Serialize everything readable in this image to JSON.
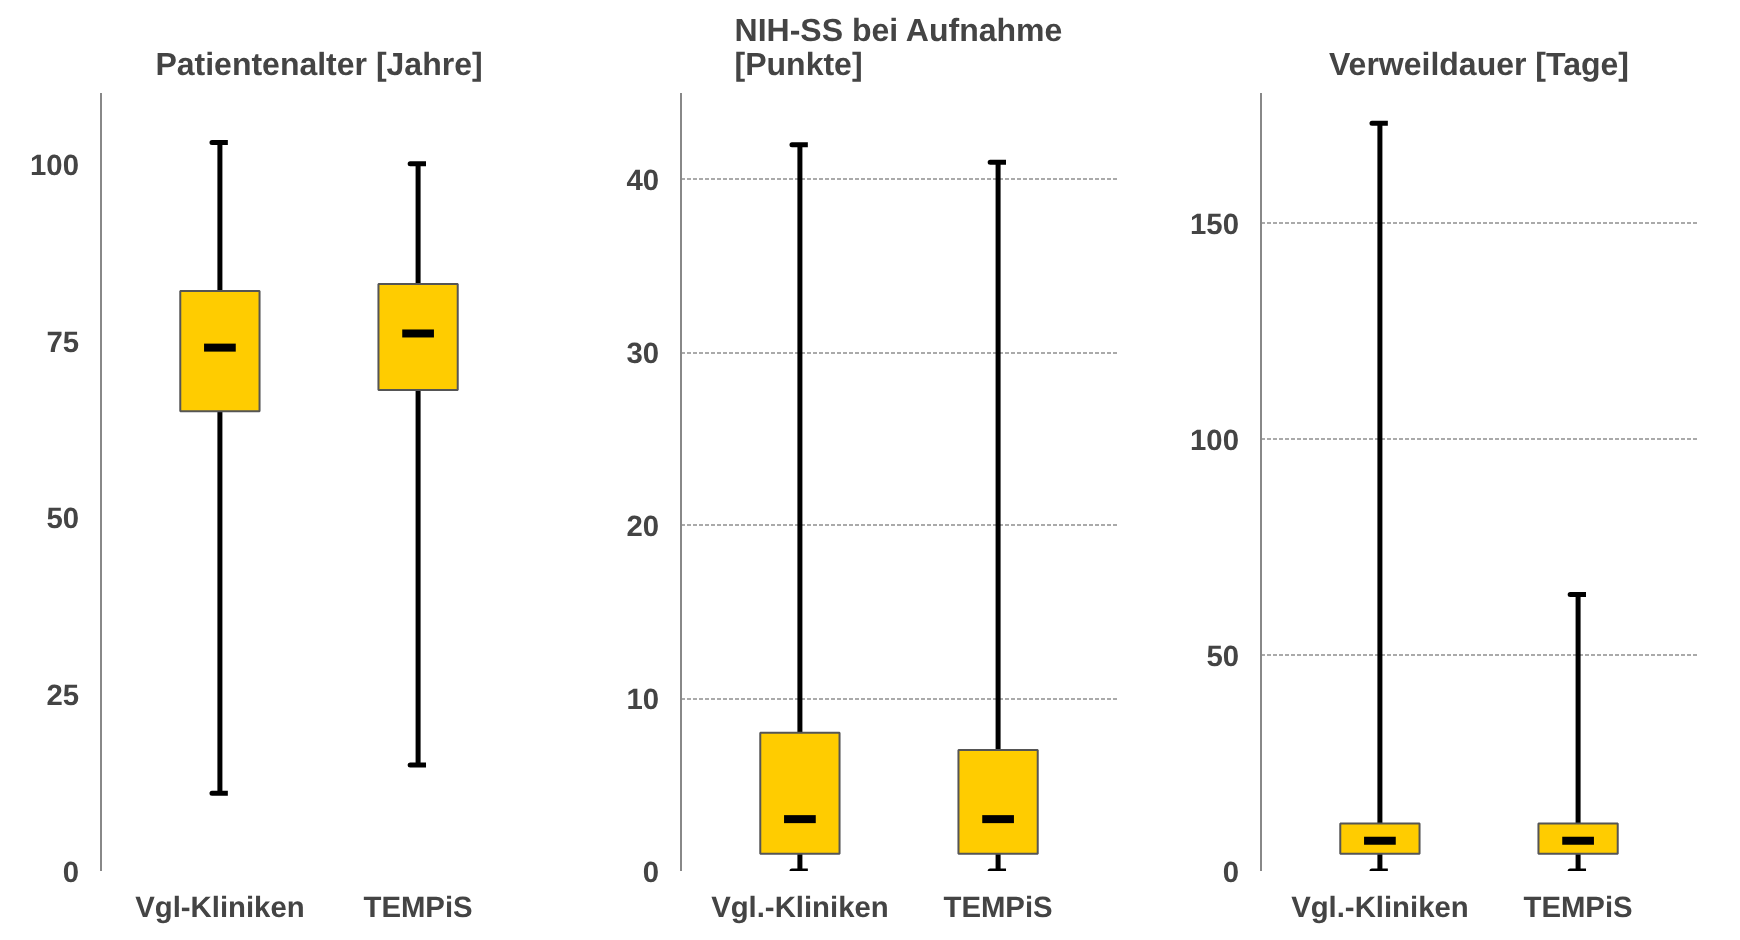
{
  "chart_data": [
    {
      "type": "box",
      "title": "Patientenalter [Jahre]",
      "categories": [
        "Vgl-Kliniken",
        "TEMPiS"
      ],
      "color": "#ffcc00",
      "ylim": [
        0,
        110
      ],
      "yticks": [
        0,
        25,
        50,
        75,
        100
      ],
      "grid": false,
      "boxes": [
        {
          "low": 11,
          "q1": 65,
          "median": 74,
          "q3": 82,
          "high": 103
        },
        {
          "low": 15,
          "q1": 68,
          "median": 76,
          "q3": 83,
          "high": 100
        }
      ]
    },
    {
      "type": "box",
      "title": "NIH-SS bei Aufnahme\n[Punkte]",
      "categories": [
        "Vgl.-Kliniken",
        "TEMPiS"
      ],
      "color": "#ffcc00",
      "ylim": [
        0,
        45
      ],
      "yticks": [
        0,
        10,
        20,
        30,
        40
      ],
      "grid": "y",
      "boxes": [
        {
          "low": 0,
          "q1": 1,
          "median": 3,
          "q3": 8,
          "high": 42
        },
        {
          "low": 0,
          "q1": 1,
          "median": 3,
          "q3": 7,
          "high": 41
        }
      ]
    },
    {
      "type": "box",
      "title": "Verweildauer [Tage]",
      "categories": [
        "Vgl.-Kliniken",
        "TEMPiS"
      ],
      "color": "#ffcc00",
      "ylim": [
        0,
        180
      ],
      "yticks": [
        0,
        50,
        100,
        150
      ],
      "grid": "y",
      "boxes": [
        {
          "low": 0,
          "q1": 4,
          "median": 7,
          "q3": 11,
          "high": 173
        },
        {
          "low": 0,
          "q1": 4,
          "median": 7,
          "q3": 11,
          "high": 64
        }
      ]
    }
  ]
}
